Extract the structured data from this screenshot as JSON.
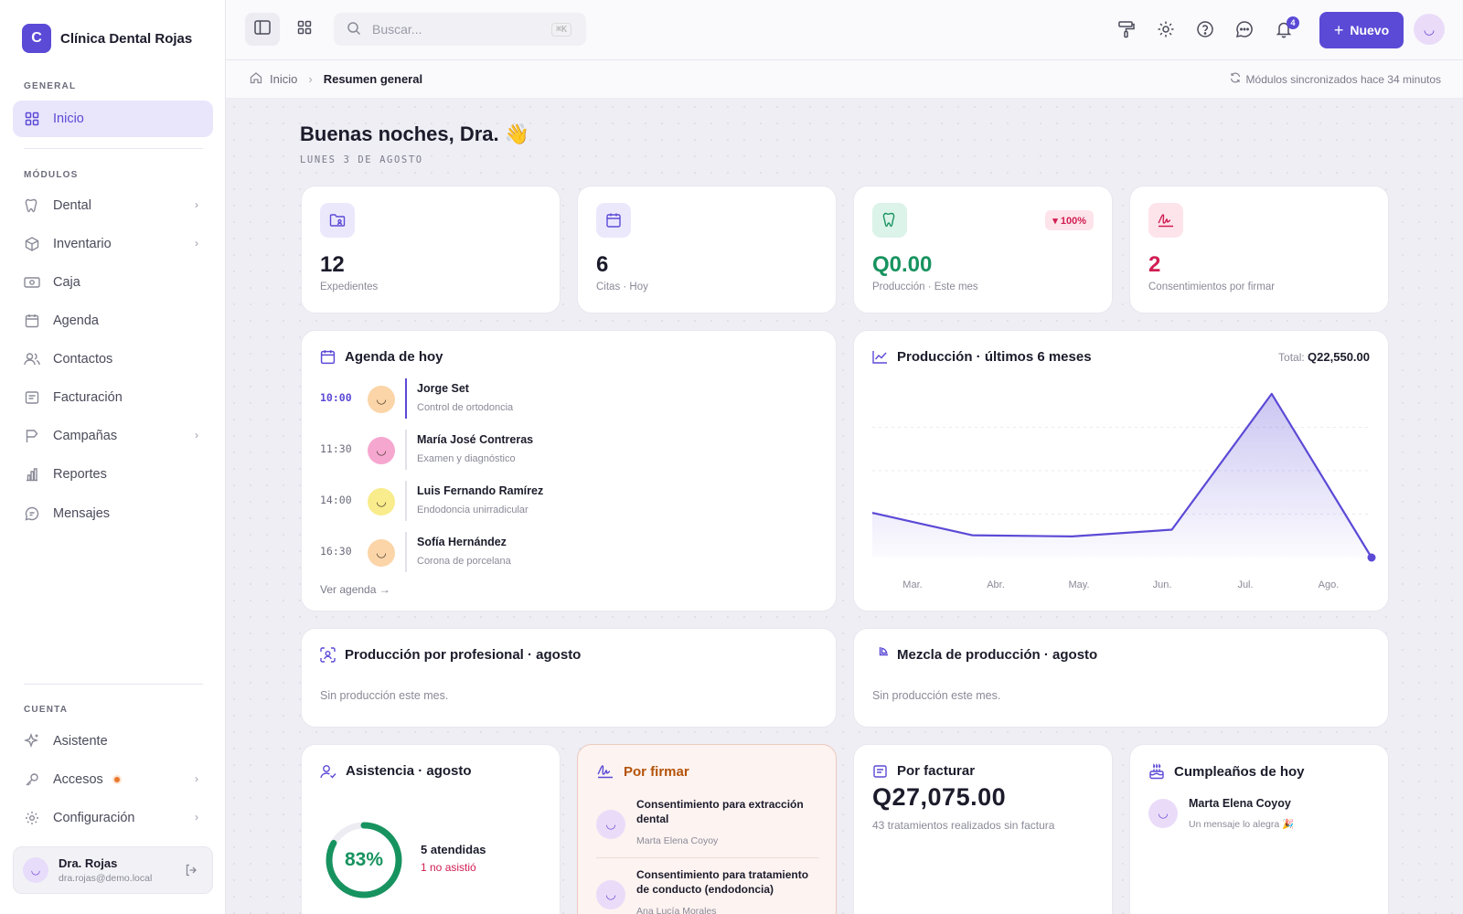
{
  "brand": {
    "initial": "C",
    "name": "Clínica Dental Rojas"
  },
  "sidebar": {
    "general_label": "GENERAL",
    "modules_label": "MÓDULOS",
    "account_label": "CUENTA",
    "items": {
      "inicio": "Inicio",
      "dental": "Dental",
      "inventario": "Inventario",
      "caja": "Caja",
      "agenda": "Agenda",
      "contactos": "Contactos",
      "facturacion": "Facturación",
      "campanas": "Campañas",
      "reportes": "Reportes",
      "mensajes": "Mensajes",
      "asistente": "Asistente",
      "accesos": "Accesos",
      "configuracion": "Configuración"
    },
    "user": {
      "name": "Dra. Rojas",
      "email": "dra.rojas@demo.local"
    }
  },
  "topbar": {
    "search_placeholder": "Buscar...",
    "search_shortcut": "⌘K",
    "notifications_count": "4",
    "new_button": "Nuevo"
  },
  "breadcrumb": {
    "home": "Inicio",
    "current": "Resumen general",
    "sync_status": "Módulos sincronizados hace 34 minutos"
  },
  "greeting": {
    "title": "Buenas noches, Dra. 👋",
    "date": "LUNES 3 DE AGOSTO"
  },
  "stats": [
    {
      "value": "12",
      "label": "Expedientes"
    },
    {
      "value": "6",
      "label": "Citas · Hoy"
    },
    {
      "value": "Q0.00",
      "label": "Producción · Este mes",
      "trend": "▾ 100%"
    },
    {
      "value": "2",
      "label": "Consentimientos por firmar"
    }
  ],
  "agenda": {
    "title": "Agenda de hoy",
    "appointments": [
      {
        "time": "10:00",
        "name": "Jorge Set",
        "desc": "Control de ortodoncia"
      },
      {
        "time": "11:30",
        "name": "María José Contreras",
        "desc": "Examen y diagnóstico"
      },
      {
        "time": "14:00",
        "name": "Luis Fernando Ramírez",
        "desc": "Endodoncia unirradicular"
      },
      {
        "time": "16:30",
        "name": "Sofía Hernández",
        "desc": "Corona de porcelana"
      }
    ],
    "link": "Ver agenda →"
  },
  "production": {
    "title": "Producción · últimos 6 meses",
    "total_label": "Total:",
    "total_value": "Q22,550.00"
  },
  "chart_data": {
    "type": "area",
    "categories": [
      "Mar.",
      "Abr.",
      "May.",
      "Jun.",
      "Jul.",
      "Ago."
    ],
    "values": [
      3600,
      1800,
      1700,
      2250,
      13200,
      0
    ],
    "ylim": [
      0,
      14000
    ],
    "grid": true,
    "color": "#5b4ad6"
  },
  "by_professional": {
    "title": "Producción por profesional · agosto",
    "empty": "Sin producción este mes."
  },
  "mix": {
    "title": "Mezcla de producción · agosto",
    "empty": "Sin producción este mes."
  },
  "attendance": {
    "title": "Asistencia · agosto",
    "percent": "83%",
    "percent_value": 0.83,
    "attended": "5 atendidas",
    "no_show": "1 no asistió"
  },
  "to_sign": {
    "title": "Por firmar",
    "items": [
      {
        "title": "Consentimiento para extracción dental",
        "patient": "Marta Elena Coyoy"
      },
      {
        "title": "Consentimiento para tratamiento de conducto (endodoncia)",
        "patient": "Ana Lucía Morales"
      }
    ]
  },
  "to_bill": {
    "title": "Por facturar",
    "amount": "Q27,075.00",
    "subtitle": "43 tratamientos realizados sin factura"
  },
  "birthdays": {
    "title": "Cumpleaños de hoy",
    "name": "Marta Elena Coyoy",
    "note": "Un mensaje lo alegra 🎉"
  },
  "colors": {
    "accent": "#5b4ad6",
    "success": "#17935f",
    "danger": "#d11d52",
    "warning": "#b45309"
  }
}
